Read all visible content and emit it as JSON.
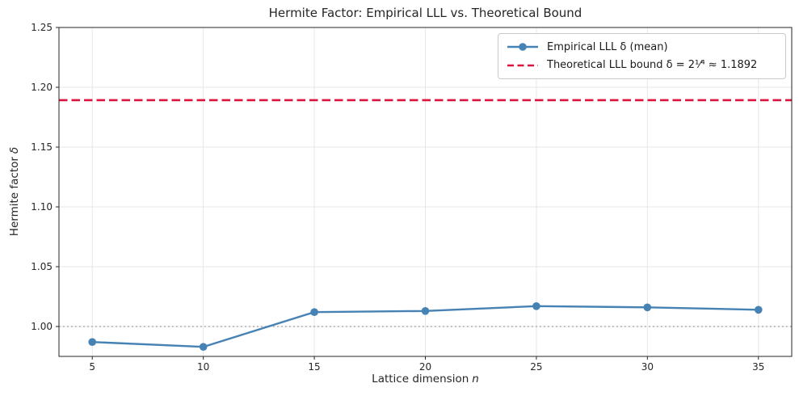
{
  "chart_data": {
    "type": "line",
    "title": "Hermite Factor: Empirical LLL vs. Theoretical Bound",
    "xlabel": {
      "text": "Lattice dimension",
      "var": "n"
    },
    "ylabel": {
      "text": "Hermite factor",
      "var": "δ"
    },
    "x": [
      5,
      10,
      15,
      20,
      25,
      30,
      35
    ],
    "series": [
      {
        "name": "Empirical LLL δ (mean)",
        "type": "line",
        "values": [
          0.987,
          0.983,
          1.012,
          1.013,
          1.017,
          1.016,
          1.014
        ],
        "color": "#4682b4",
        "marker": "circle",
        "linestyle": "solid"
      },
      {
        "name": "Theoretical LLL bound δ = 2¹⁄⁴ ≈ 1.1892",
        "type": "hline",
        "value": 1.1892,
        "color": "#dc143c",
        "linestyle": "dashed"
      }
    ],
    "baseline": {
      "value": 1.0,
      "color": "#9a9a9a",
      "linestyle": "dotted"
    },
    "xlim": [
      3.5,
      36.5
    ],
    "ylim": [
      0.975,
      1.25
    ],
    "xticks": [
      5,
      10,
      15,
      20,
      25,
      30,
      35
    ],
    "xticklabels": [
      "5",
      "10",
      "15",
      "20",
      "25",
      "30",
      "35"
    ],
    "yticks": [
      1.0,
      1.05,
      1.1,
      1.15,
      1.2,
      1.25
    ],
    "yticklabels": [
      "1.00",
      "1.05",
      "1.10",
      "1.15",
      "1.20",
      "1.25"
    ],
    "grid": true,
    "grid_color": "#e7e7e7",
    "axis_color": "#262626",
    "legend_position": "upper right"
  }
}
